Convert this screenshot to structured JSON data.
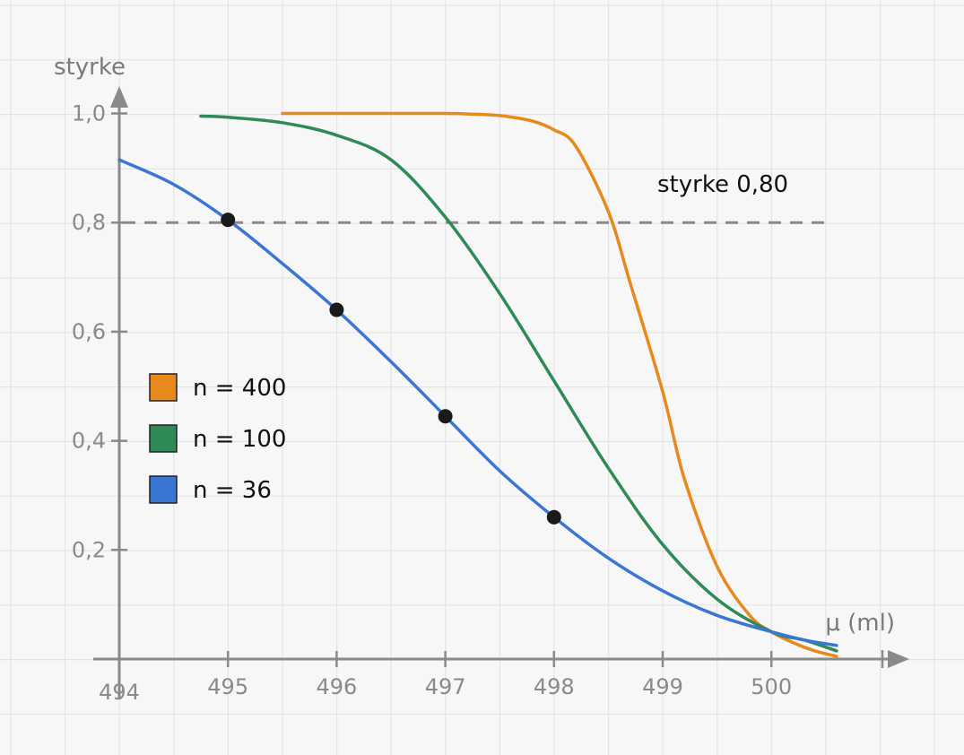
{
  "chart_data": {
    "type": "line",
    "xlabel": "μ (ml)",
    "ylabel": "styrke",
    "xlim": [
      494,
      500.6
    ],
    "ylim": [
      0,
      1.0
    ],
    "x_ticks": [
      494,
      495,
      496,
      497,
      498,
      499,
      500
    ],
    "x_tick_labels": [
      "494",
      "495",
      "496",
      "497",
      "498",
      "499",
      "500"
    ],
    "y_ticks": [
      0.2,
      0.4,
      0.6,
      0.8,
      1.0
    ],
    "y_tick_labels": [
      "0,2",
      "0,4",
      "0,6",
      "0,8",
      "1,0"
    ],
    "grid": true,
    "legend_position": "left",
    "reference_line": {
      "y": 0.8,
      "label": "styrke 0,80",
      "x_end": 500.5
    },
    "series": [
      {
        "name": "n = 400",
        "color": "#e8891d",
        "x": [
          495.5,
          496.0,
          496.5,
          497.0,
          497.2,
          497.5,
          497.8,
          498.0,
          498.2,
          498.5,
          498.7,
          499.0,
          499.2,
          499.5,
          499.8,
          500.0,
          500.2,
          500.4,
          500.6
        ],
        "y": [
          1.0,
          1.0,
          1.0,
          1.0,
          0.999,
          0.996,
          0.986,
          0.97,
          0.94,
          0.82,
          0.69,
          0.49,
          0.33,
          0.17,
          0.08,
          0.05,
          0.03,
          0.015,
          0.005
        ]
      },
      {
        "name": "n = 100",
        "color": "#2e8b57",
        "x": [
          494.75,
          495.0,
          495.5,
          496.0,
          496.5,
          497.0,
          497.5,
          498.0,
          498.5,
          499.0,
          499.5,
          500.0,
          500.3,
          500.6
        ],
        "y": [
          0.995,
          0.993,
          0.983,
          0.96,
          0.915,
          0.81,
          0.67,
          0.51,
          0.35,
          0.21,
          0.11,
          0.05,
          0.035,
          0.015
        ]
      },
      {
        "name": "n = 36",
        "color": "#3a76d4",
        "x": [
          494.0,
          494.5,
          495.0,
          495.5,
          496.0,
          496.5,
          497.0,
          497.5,
          498.0,
          498.5,
          499.0,
          499.5,
          500.0,
          500.3,
          500.6
        ],
        "y": [
          0.915,
          0.87,
          0.805,
          0.725,
          0.64,
          0.545,
          0.445,
          0.345,
          0.26,
          0.185,
          0.125,
          0.08,
          0.05,
          0.035,
          0.025
        ]
      }
    ],
    "points": [
      {
        "x": 495,
        "y": 0.805
      },
      {
        "x": 496,
        "y": 0.64
      },
      {
        "x": 497,
        "y": 0.445
      },
      {
        "x": 498,
        "y": 0.26
      }
    ]
  }
}
